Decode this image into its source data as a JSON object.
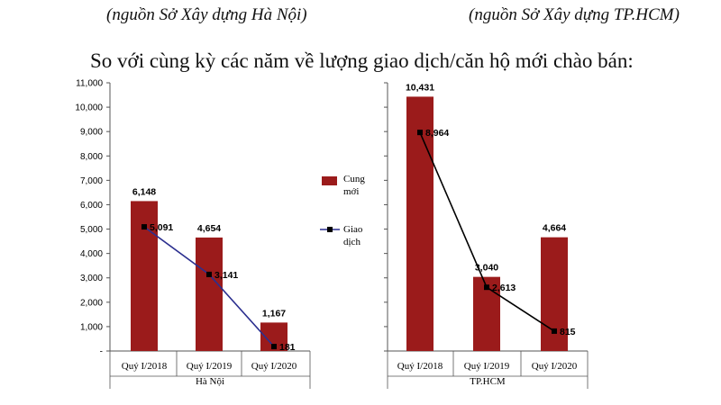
{
  "header": {
    "source_left": "(nguồn Sở Xây dựng Hà Nội)",
    "source_right": "(nguồn Sở Xây dựng TP.HCM)",
    "headline": "So với cùng kỳ các năm về lượng giao dịch/căn hộ mới chào bán:"
  },
  "legend": {
    "bar_label_line1": "Cung",
    "bar_label_line2": "mới",
    "line_label_line1": "Giao",
    "line_label_line2": "dịch"
  },
  "colors": {
    "bar": "#9b1b1b",
    "line_hanoi": "#2b2f8f",
    "line_hcm": "#000000",
    "marker": "#000000",
    "axis": "#555555"
  },
  "chart_data": [
    {
      "type": "bar",
      "group_label": "Hà Nội",
      "categories": [
        "Quý I/2018",
        "Quý I/2019",
        "Quý I/2020"
      ],
      "series": [
        {
          "name": "Cung mới",
          "type": "bar",
          "values": [
            6148,
            4654,
            1167
          ],
          "labels": [
            "6,148",
            "4,654",
            "1,167"
          ]
        },
        {
          "name": "Giao dịch",
          "type": "line",
          "values": [
            5091,
            3141,
            181
          ],
          "labels": [
            "5,091",
            "3,141",
            "181"
          ]
        }
      ],
      "ylim": [
        0,
        11000
      ],
      "yticks": [
        "-",
        "1,000",
        "2,000",
        "3,000",
        "4,000",
        "5,000",
        "6,000",
        "7,000",
        "8,000",
        "9,000",
        "10,000",
        "11,000"
      ]
    },
    {
      "type": "bar",
      "group_label": "TP.HCM",
      "categories": [
        "Quý I/2018",
        "Quý I/2019",
        "Quý I/2020"
      ],
      "series": [
        {
          "name": "Cung mới",
          "type": "bar",
          "values": [
            10431,
            3040,
            4664
          ],
          "labels": [
            "10,431",
            "3,040",
            "4,664"
          ]
        },
        {
          "name": "Giao dịch",
          "type": "line",
          "values": [
            8964,
            2613,
            815
          ],
          "labels": [
            "8,964",
            "2,613",
            "815"
          ]
        }
      ],
      "ylim": [
        0,
        11000
      ]
    }
  ]
}
